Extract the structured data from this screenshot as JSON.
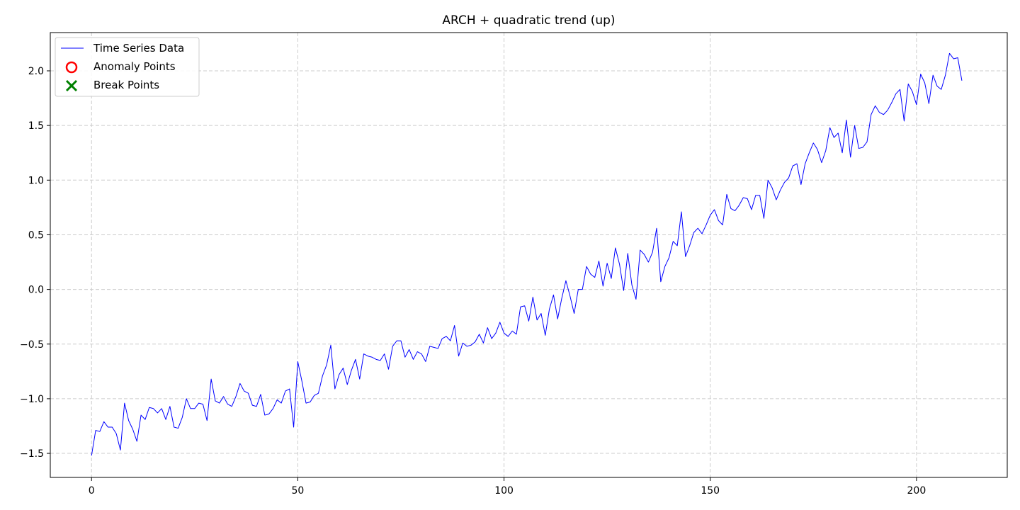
{
  "chart_data": {
    "type": "line",
    "title": "ARCH + quadratic trend (up)",
    "xlabel": "",
    "ylabel": "",
    "xlim": [
      -10,
      222
    ],
    "ylim": [
      -1.72,
      2.35
    ],
    "xticks": [
      0,
      50,
      100,
      150,
      200
    ],
    "xtick_labels": [
      "0",
      "50",
      "100",
      "150",
      "200"
    ],
    "yticks": [
      -1.5,
      -1.0,
      -0.5,
      0.0,
      0.5,
      1.0,
      1.5,
      2.0
    ],
    "ytick_labels": [
      "−1.5",
      "−1.0",
      "−0.5",
      "0.0",
      "0.5",
      "1.0",
      "1.5",
      "2.0"
    ],
    "grid": true,
    "legend_position": "top-left",
    "legend": [
      {
        "label": "Time Series Data",
        "marker": "line",
        "color": "#0000ff"
      },
      {
        "label": "Anomaly Points",
        "marker": "circle",
        "color": "#ff0000"
      },
      {
        "label": "Break Points",
        "marker": "x",
        "color": "#008000"
      }
    ],
    "series": [
      {
        "name": "Time Series Data",
        "color": "#0000ff",
        "x_start": 0,
        "x_step": 1,
        "values": [
          -1.52,
          -1.29,
          -1.3,
          -1.21,
          -1.26,
          -1.26,
          -1.32,
          -1.47,
          -1.04,
          -1.2,
          -1.28,
          -1.39,
          -1.15,
          -1.19,
          -1.08,
          -1.09,
          -1.13,
          -1.09,
          -1.19,
          -1.07,
          -1.26,
          -1.27,
          -1.17,
          -1.0,
          -1.09,
          -1.09,
          -1.04,
          -1.05,
          -1.2,
          -0.82,
          -1.02,
          -1.04,
          -0.98,
          -1.05,
          -1.07,
          -0.98,
          -0.86,
          -0.93,
          -0.95,
          -1.06,
          -1.07,
          -0.96,
          -1.15,
          -1.14,
          -1.09,
          -1.01,
          -1.04,
          -0.93,
          -0.91,
          -1.26,
          -0.66,
          -0.84,
          -1.04,
          -1.03,
          -0.97,
          -0.95,
          -0.79,
          -0.69,
          -0.51,
          -0.91,
          -0.78,
          -0.72,
          -0.87,
          -0.74,
          -0.64,
          -0.82,
          -0.59,
          -0.61,
          -0.62,
          -0.64,
          -0.65,
          -0.59,
          -0.73,
          -0.52,
          -0.47,
          -0.47,
          -0.62,
          -0.55,
          -0.64,
          -0.57,
          -0.59,
          -0.66,
          -0.52,
          -0.53,
          -0.54,
          -0.45,
          -0.43,
          -0.47,
          -0.33,
          -0.61,
          -0.49,
          -0.52,
          -0.51,
          -0.48,
          -0.41,
          -0.49,
          -0.35,
          -0.45,
          -0.4,
          -0.3,
          -0.4,
          -0.43,
          -0.38,
          -0.41,
          -0.16,
          -0.15,
          -0.29,
          -0.07,
          -0.28,
          -0.22,
          -0.42,
          -0.18,
          -0.05,
          -0.27,
          -0.08,
          0.08,
          -0.06,
          -0.22,
          0.0,
          0.0,
          0.21,
          0.14,
          0.11,
          0.26,
          0.03,
          0.24,
          0.1,
          0.38,
          0.23,
          -0.01,
          0.33,
          0.04,
          -0.09,
          0.36,
          0.32,
          0.25,
          0.34,
          0.56,
          0.07,
          0.21,
          0.29,
          0.44,
          0.4,
          0.71,
          0.3,
          0.4,
          0.52,
          0.56,
          0.51,
          0.59,
          0.68,
          0.73,
          0.63,
          0.59,
          0.87,
          0.74,
          0.72,
          0.77,
          0.84,
          0.83,
          0.73,
          0.86,
          0.86,
          0.65,
          1.0,
          0.93,
          0.82,
          0.91,
          0.98,
          1.02,
          1.13,
          1.15,
          0.96,
          1.15,
          1.25,
          1.34,
          1.28,
          1.16,
          1.27,
          1.48,
          1.39,
          1.43,
          1.25,
          1.55,
          1.21,
          1.5,
          1.29,
          1.3,
          1.35,
          1.6,
          1.68,
          1.62,
          1.6,
          1.64,
          1.71,
          1.79,
          1.83,
          1.54,
          1.88,
          1.81,
          1.69,
          1.97,
          1.89,
          1.7,
          1.96,
          1.86,
          1.83,
          1.96,
          2.16,
          2.11,
          2.12,
          1.91
        ]
      }
    ]
  }
}
